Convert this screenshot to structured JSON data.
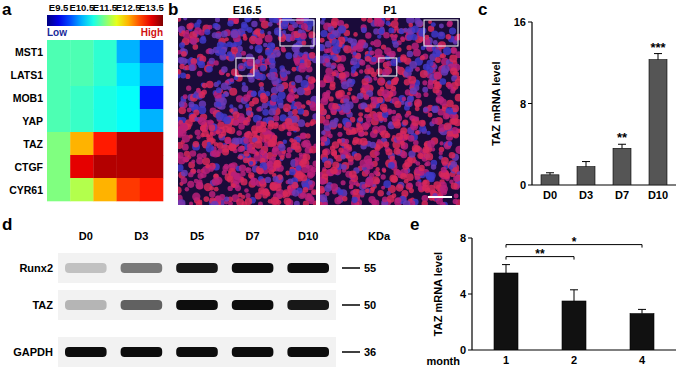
{
  "chart_data": [
    {
      "type": "heatmap",
      "panel": "a",
      "categories": [
        "E9.5",
        "E10.5",
        "E11.5",
        "E12.5",
        "E13.5"
      ],
      "rows": [
        "MST1",
        "LATS1",
        "MOB1",
        "YAP",
        "TAZ",
        "CTGF",
        "CYR61"
      ],
      "cells": [
        [
          0.45,
          0.45,
          0.42,
          0.3,
          0.2
        ],
        [
          0.45,
          0.45,
          0.42,
          0.35,
          0.28
        ],
        [
          0.45,
          0.43,
          0.4,
          0.38,
          0.15
        ],
        [
          0.45,
          0.43,
          0.4,
          0.38,
          0.3
        ],
        [
          0.5,
          0.7,
          0.85,
          0.95,
          0.95
        ],
        [
          0.5,
          0.9,
          0.95,
          0.95,
          0.95
        ],
        [
          0.5,
          0.55,
          0.7,
          0.82,
          0.85
        ]
      ],
      "colorbar_range": [
        0,
        1
      ],
      "colorbar_ticks": [
        {
          "value": 0,
          "label": "Low"
        },
        {
          "value": 1,
          "label": "High"
        }
      ]
    },
    {
      "type": "image",
      "panel": "b",
      "images": [
        {
          "label": "E16.5"
        },
        {
          "label": "P1"
        }
      ]
    },
    {
      "type": "bar",
      "panel": "c",
      "y_label": "TAZ mRNA level",
      "categories": [
        "D0",
        "D3",
        "D7",
        "D10"
      ],
      "values": [
        1,
        1.8,
        3.6,
        12.3
      ],
      "errors": [
        0.2,
        0.5,
        0.4,
        0.6
      ],
      "significance": [
        null,
        null,
        "**",
        "***"
      ],
      "color": "#555555",
      "ylim": [
        0,
        16
      ],
      "yticks": [
        0,
        8,
        16
      ]
    },
    {
      "type": "blot",
      "panel": "d",
      "unit_label": "KDa",
      "categories": [
        "D0",
        "D3",
        "D5",
        "D7",
        "D10"
      ],
      "series": [
        {
          "name": "Runx2",
          "values": [
            0.2,
            0.5,
            0.9,
            0.95,
            0.95
          ]
        },
        {
          "name": "TAZ",
          "values": [
            0.25,
            0.6,
            0.95,
            0.95,
            0.9
          ]
        },
        {
          "name": "GAPDH",
          "values": [
            0.95,
            0.95,
            0.95,
            0.95,
            0.95
          ]
        }
      ],
      "size_markers": [
        55,
        50,
        36
      ]
    },
    {
      "type": "bar",
      "panel": "e",
      "y_label": "TAZ mRNA level",
      "x_label": "month",
      "categories": [
        "1",
        "2",
        "4"
      ],
      "values": [
        5.5,
        3.5,
        2.6
      ],
      "errors": [
        0.6,
        0.8,
        0.3
      ],
      "comparisons": [
        {
          "from": 0,
          "to": 1,
          "label": "**"
        },
        {
          "from": 0,
          "to": 2,
          "label": "*"
        }
      ],
      "color": "#111111",
      "ylim": [
        0,
        8
      ],
      "yticks": [
        0,
        4,
        8
      ]
    }
  ]
}
